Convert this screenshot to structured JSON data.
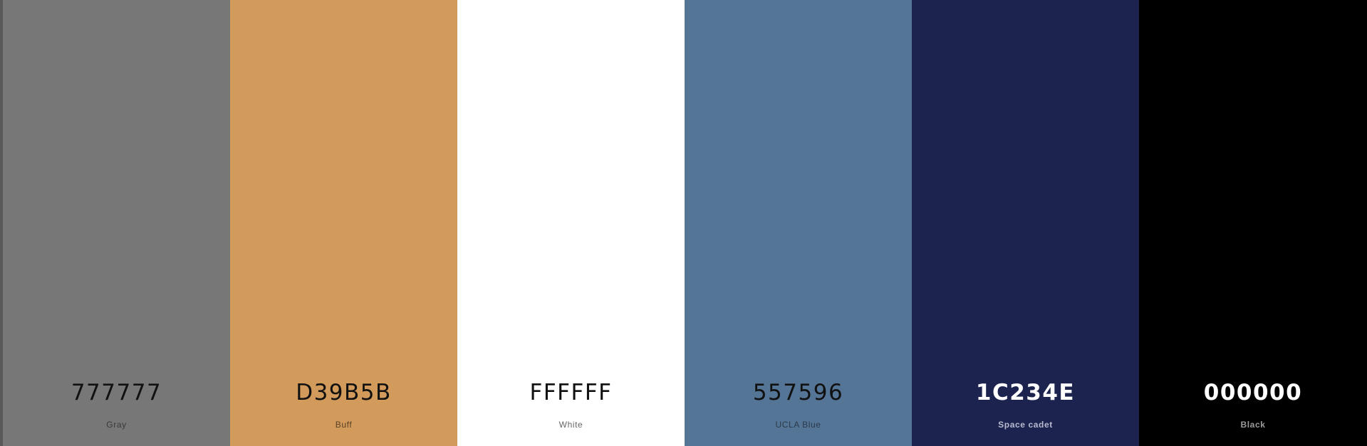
{
  "palette": {
    "swatches": [
      {
        "hex": "777777",
        "name": "Gray",
        "color": "#777777",
        "hex_color": "#111111",
        "name_color": "#3a3a3a",
        "dark": false
      },
      {
        "hex": "D39B5B",
        "name": "Buff",
        "color": "#D39B5B",
        "hex_color": "#111111",
        "name_color": "#5a4024",
        "dark": false
      },
      {
        "hex": "FFFFFF",
        "name": "White",
        "color": "#FFFFFF",
        "hex_color": "#111111",
        "name_color": "#666666",
        "dark": false
      },
      {
        "hex": "557596",
        "name": "UCLA Blue",
        "color": "#557596",
        "hex_color": "#111111",
        "name_color": "#2a3a4b",
        "dark": false
      },
      {
        "hex": "1C234E",
        "name": "Space cadet",
        "color": "#1C234E",
        "hex_color": "#FFFFFF",
        "name_color": "#b8bbd0",
        "dark": true
      },
      {
        "hex": "000000",
        "name": "Black",
        "color": "#000000",
        "hex_color": "#FFFFFF",
        "name_color": "#9a9a9a",
        "dark": true
      }
    ]
  }
}
